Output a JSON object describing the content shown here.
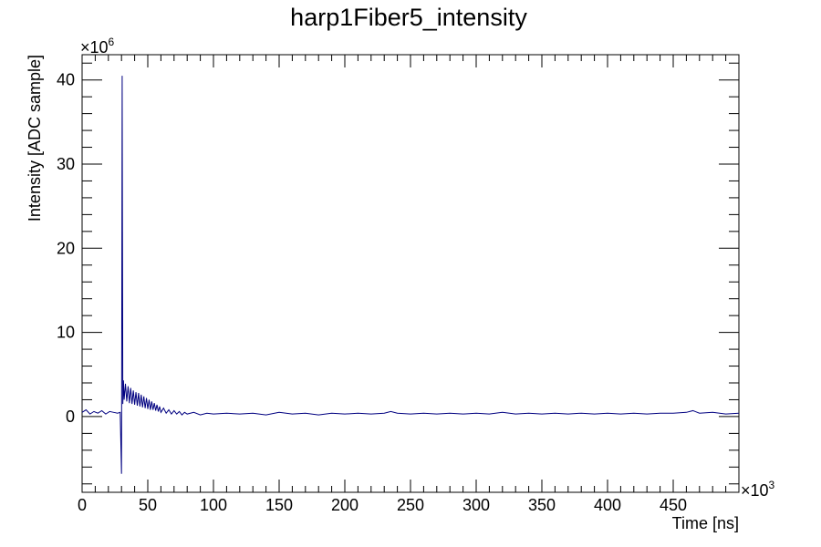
{
  "chart_data": {
    "type": "line",
    "title": "harp1Fiber5_intensity",
    "xlabel": "Time [ns]",
    "ylabel": "Intensity [ADC sample]",
    "x_multiplier": "×10",
    "x_multiplier_exp": "3",
    "y_multiplier": "×10",
    "y_multiplier_exp": "6",
    "xlim": [
      0,
      500
    ],
    "ylim": [
      -9,
      43
    ],
    "x_ticks": [
      0,
      50,
      100,
      150,
      200,
      250,
      300,
      350,
      400,
      450
    ],
    "x_tick_labels": [
      "0",
      "50",
      "100",
      "150",
      "200",
      "250",
      "300",
      "350",
      "400",
      "450"
    ],
    "y_ticks": [
      0,
      10,
      20,
      30,
      40
    ],
    "y_tick_labels": [
      "0",
      "10",
      "20",
      "30",
      "40"
    ],
    "series_color": "#000080",
    "grid": false,
    "legend": "none",
    "series": [
      {
        "x": [
          0,
          3,
          6,
          9,
          12,
          15,
          18,
          21,
          24,
          27,
          29,
          30,
          30.5,
          31,
          31.5,
          32,
          33,
          34,
          35,
          36,
          37,
          38,
          39,
          40,
          41,
          42,
          43,
          44,
          45,
          46,
          47,
          48,
          49,
          50,
          51,
          52,
          53,
          54,
          55,
          56,
          57,
          58,
          59,
          60,
          62,
          64,
          66,
          68,
          70,
          72,
          74,
          76,
          78,
          80,
          85,
          90,
          95,
          100,
          110,
          120,
          130,
          140,
          150,
          160,
          170,
          180,
          190,
          200,
          210,
          220,
          230,
          235,
          240,
          250,
          260,
          270,
          280,
          290,
          300,
          310,
          320,
          330,
          340,
          350,
          360,
          370,
          380,
          390,
          400,
          410,
          420,
          430,
          440,
          450,
          460,
          465,
          470,
          480,
          490,
          500
        ],
        "y": [
          0.5,
          0.8,
          0.3,
          0.6,
          0.4,
          0.7,
          0.3,
          0.6,
          0.5,
          0.4,
          0.5,
          -6.8,
          40.5,
          1.5,
          4.3,
          2.0,
          3.9,
          1.8,
          3.6,
          1.6,
          3.4,
          1.5,
          3.1,
          1.4,
          2.9,
          1.3,
          2.8,
          1.2,
          2.6,
          1.1,
          2.4,
          1.0,
          2.2,
          0.9,
          2.0,
          0.8,
          1.8,
          0.8,
          1.6,
          0.7,
          1.4,
          0.6,
          1.2,
          0.5,
          1.0,
          0.4,
          0.8,
          0.3,
          0.7,
          0.3,
          0.6,
          0.2,
          0.5,
          0.3,
          0.5,
          0.2,
          0.4,
          0.3,
          0.4,
          0.3,
          0.4,
          0.2,
          0.5,
          0.3,
          0.4,
          0.2,
          0.4,
          0.3,
          0.4,
          0.3,
          0.4,
          0.6,
          0.4,
          0.3,
          0.4,
          0.3,
          0.4,
          0.3,
          0.4,
          0.3,
          0.5,
          0.3,
          0.4,
          0.3,
          0.4,
          0.3,
          0.4,
          0.3,
          0.4,
          0.3,
          0.4,
          0.3,
          0.4,
          0.4,
          0.5,
          0.7,
          0.4,
          0.5,
          0.3,
          0.4
        ]
      }
    ]
  }
}
